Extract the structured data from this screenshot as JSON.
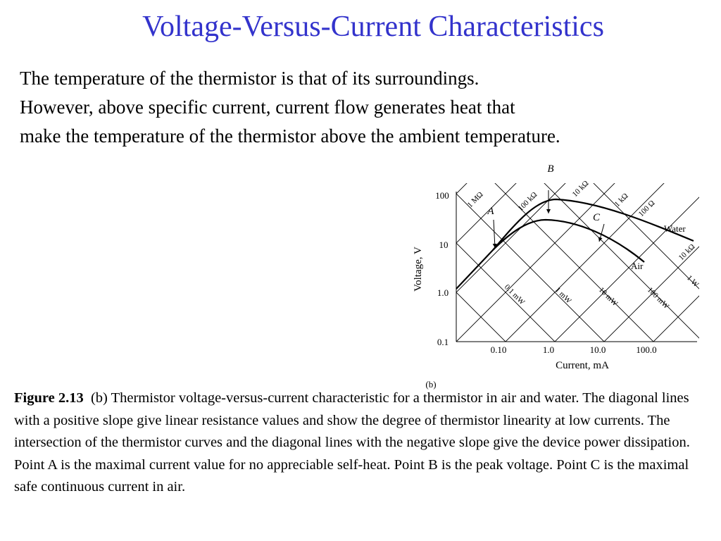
{
  "title": "Voltage-Versus-Current Characteristics",
  "body": [
    "The temperature of the thermistor is that of its surroundings.",
    "However, above specific current, current flow generates heat that",
    "make the temperature of the thermistor above the ambient temperature."
  ],
  "figure": {
    "y_label": "Voltage, V",
    "x_label": "Current, mA",
    "y_ticks": [
      "100",
      "10",
      "1.0",
      "0.1"
    ],
    "x_ticks": [
      "0.10",
      "1.0",
      "10.0",
      "100.0"
    ],
    "points": [
      "A",
      "B",
      "C"
    ],
    "curves": [
      "Water",
      "Air"
    ],
    "resistance_lines": [
      "1 MΩ",
      "100 kΩ",
      "10 kΩ",
      "1 kΩ",
      "100 Ω",
      "10 kΩ"
    ],
    "power_lines": [
      "0.1 mW",
      "1 mW",
      "10 mW",
      "100 mW",
      "1 W"
    ],
    "panel": "(b)"
  },
  "caption": {
    "label": "Figure 2.13",
    "text": "(b) Thermistor voltage-versus-current characteristic for a thermistor in air and water.  The diagonal lines with a positive slope give linear resistance values and show the degree of thermistor linearity at low currents.  The intersection of the thermistor curves and the diagonal lines with the negative slope give the device power dissipation.  Point A is the maximal current value for no appreciable self-heat.  Point B is the peak voltage.  Point C is the maximal safe continuous current in air."
  }
}
